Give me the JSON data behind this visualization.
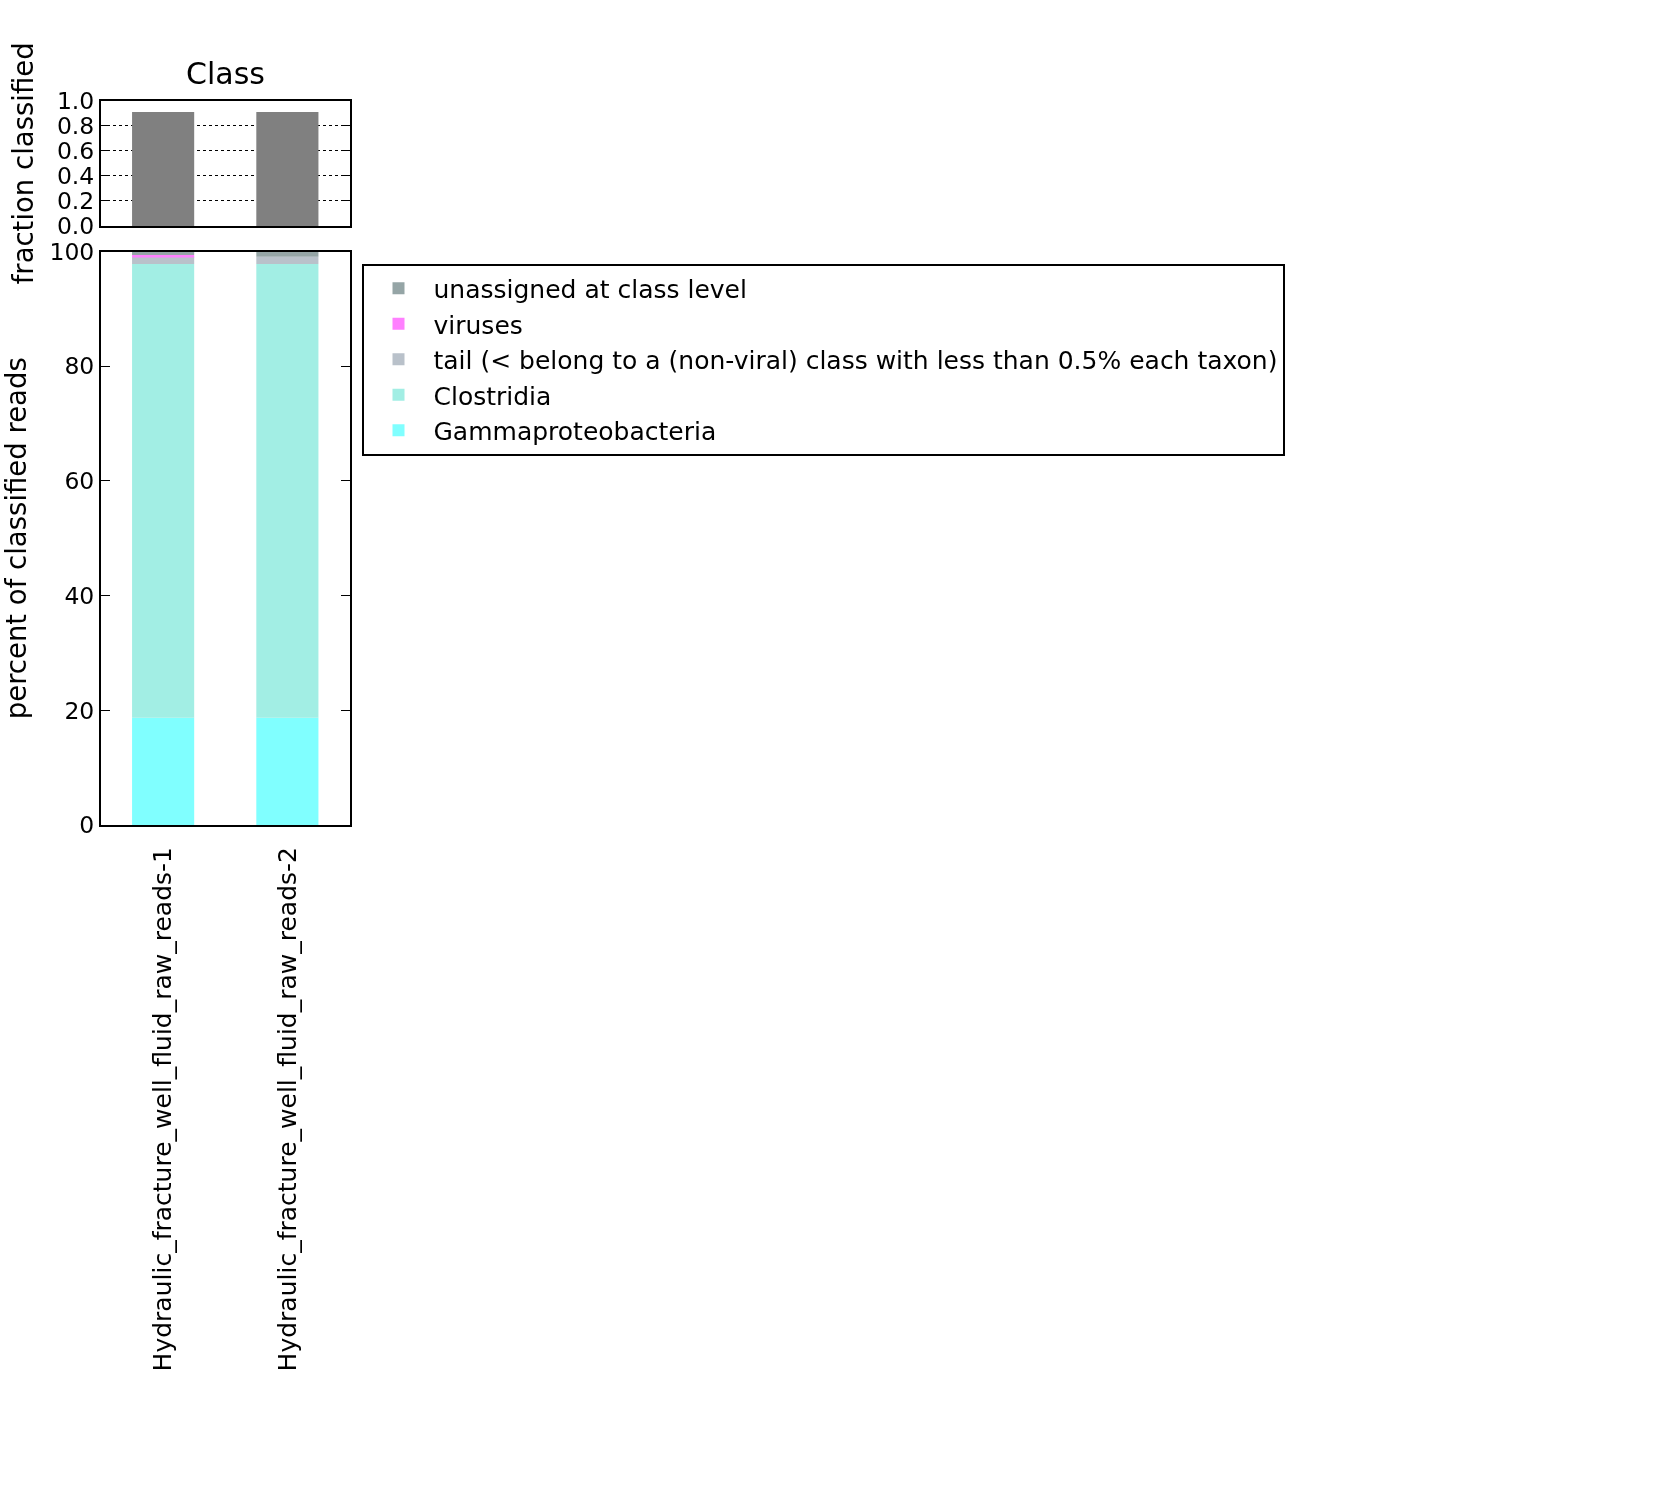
{
  "chart_data": [
    {
      "type": "bar",
      "title": "Class",
      "ylabel": "fraction classified",
      "categories": [
        "Hydraulic_fracture_well_fluid_raw_reads-1",
        "Hydraulic_fracture_well_fluid_raw_reads-2"
      ],
      "values": [
        0.91,
        0.91
      ],
      "color": "#808080",
      "ylim": [
        0,
        1
      ],
      "yticks": [
        {
          "value": 0,
          "label": "0.0"
        },
        {
          "value": 0.2,
          "label": "0.2"
        },
        {
          "value": 0.4,
          "label": "0.4"
        },
        {
          "value": 0.6,
          "label": "0.6"
        },
        {
          "value": 0.8,
          "label": "0.8"
        },
        {
          "value": 1,
          "label": "1.0"
        }
      ],
      "grid": "y",
      "tick_labels": "y"
    },
    {
      "type": "bar",
      "stacked": true,
      "ylabel": "percent of classified reads",
      "categories": [
        "Hydraulic_fracture_well_fluid_raw_reads-1",
        "Hydraulic_fracture_well_fluid_raw_reads-2"
      ],
      "series": [
        {
          "name": "Gammaproteobacteria",
          "color": "#80ffff",
          "values": [
            18.7,
            18.7
          ]
        },
        {
          "name": "Clostridia",
          "color": "#a2eee4",
          "values": [
            79.1,
            79.1
          ]
        },
        {
          "name": "tail (< belong to a (non-viral) class with less than 0.5% each taxon)",
          "color": "#b9c1ca",
          "values": [
            1.3,
            1.3
          ]
        },
        {
          "name": "viruses",
          "color": "#ff80ff",
          "values": [
            0.3,
            0
          ]
        },
        {
          "name": "unassigned at class level",
          "color": "#95a5a6",
          "values": [
            0.6,
            0.9
          ]
        }
      ],
      "ylim": [
        0,
        100
      ],
      "yticks": [
        0,
        20,
        40,
        60,
        80,
        100
      ],
      "legend": "top right"
    }
  ]
}
